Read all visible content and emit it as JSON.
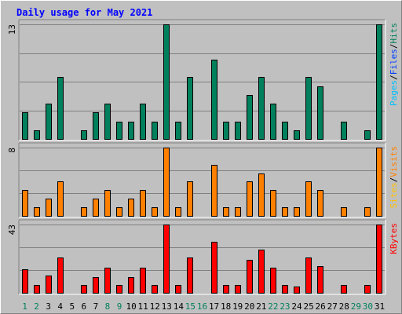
{
  "chart_data": {
    "type": "bar",
    "title": "Daily usage for May 2021",
    "colors": {
      "hits": "#00805c",
      "files": "#0040ff",
      "pages": "#00c0ff",
      "visits": "#ff8000",
      "sites": "#ffc000",
      "kbytes": "#ff0000",
      "title": "#0000ff",
      "weekend": "#00805c",
      "weekday": "#000000"
    },
    "days": [
      "1",
      "2",
      "3",
      "4",
      "5",
      "6",
      "7",
      "8",
      "9",
      "10",
      "11",
      "12",
      "13",
      "14",
      "15",
      "16",
      "17",
      "18",
      "19",
      "20",
      "21",
      "22",
      "23",
      "24",
      "25",
      "26",
      "27",
      "28",
      "29",
      "30",
      "31"
    ],
    "weekend_days": [
      "1",
      "2",
      "8",
      "9",
      "15",
      "16",
      "22",
      "23",
      "29",
      "30"
    ],
    "panels": [
      {
        "id": "hits",
        "ymax": 13,
        "ymax_label": "13",
        "legend": [
          {
            "text": "Pages",
            "color": "#00c0ff"
          },
          {
            "text": "/",
            "color": "#000000"
          },
          {
            "text": "Files",
            "color": "#0040ff"
          },
          {
            "text": "/",
            "color": "#000000"
          },
          {
            "text": "Hits",
            "color": "#00805c"
          }
        ],
        "series": [
          {
            "name": "Hits",
            "color": "#00805c",
            "values": [
              3,
              1,
              4,
              7,
              0,
              1,
              3,
              4,
              2,
              2,
              4,
              2,
              13,
              2,
              7,
              0,
              9,
              2,
              2,
              5,
              7,
              4,
              2,
              1,
              7,
              6,
              0,
              2,
              0,
              1,
              13
            ]
          }
        ]
      },
      {
        "id": "visits",
        "ymax": 8,
        "ymax_label": "8",
        "legend": [
          {
            "text": "Sites",
            "color": "#ffc000"
          },
          {
            "text": "/",
            "color": "#000000"
          },
          {
            "text": "Visits",
            "color": "#ff8000"
          }
        ],
        "series": [
          {
            "name": "Visits",
            "color": "#ff8000",
            "values": [
              3,
              1,
              2,
              4,
              0,
              1,
              2,
              3,
              1,
              2,
              3,
              1,
              8,
              1,
              4,
              0,
              6,
              1,
              1,
              4,
              5,
              3,
              1,
              1,
              4,
              3,
              0,
              1,
              0,
              1,
              8
            ]
          }
        ]
      },
      {
        "id": "kbytes",
        "ymax": 43,
        "ymax_label": "43",
        "legend": [
          {
            "text": "KBytes",
            "color": "#ff0000"
          }
        ],
        "series": [
          {
            "name": "KBytes",
            "color": "#ff0000",
            "values": [
              15,
              5,
              11,
              22,
              0,
              5,
              10,
              16,
              5,
              10,
              16,
              5,
              43,
              5,
              22,
              0,
              32,
              5,
              5,
              21,
              27,
              16,
              5,
              4,
              22,
              17,
              0,
              5,
              0,
              5,
              43
            ]
          }
        ]
      }
    ]
  }
}
